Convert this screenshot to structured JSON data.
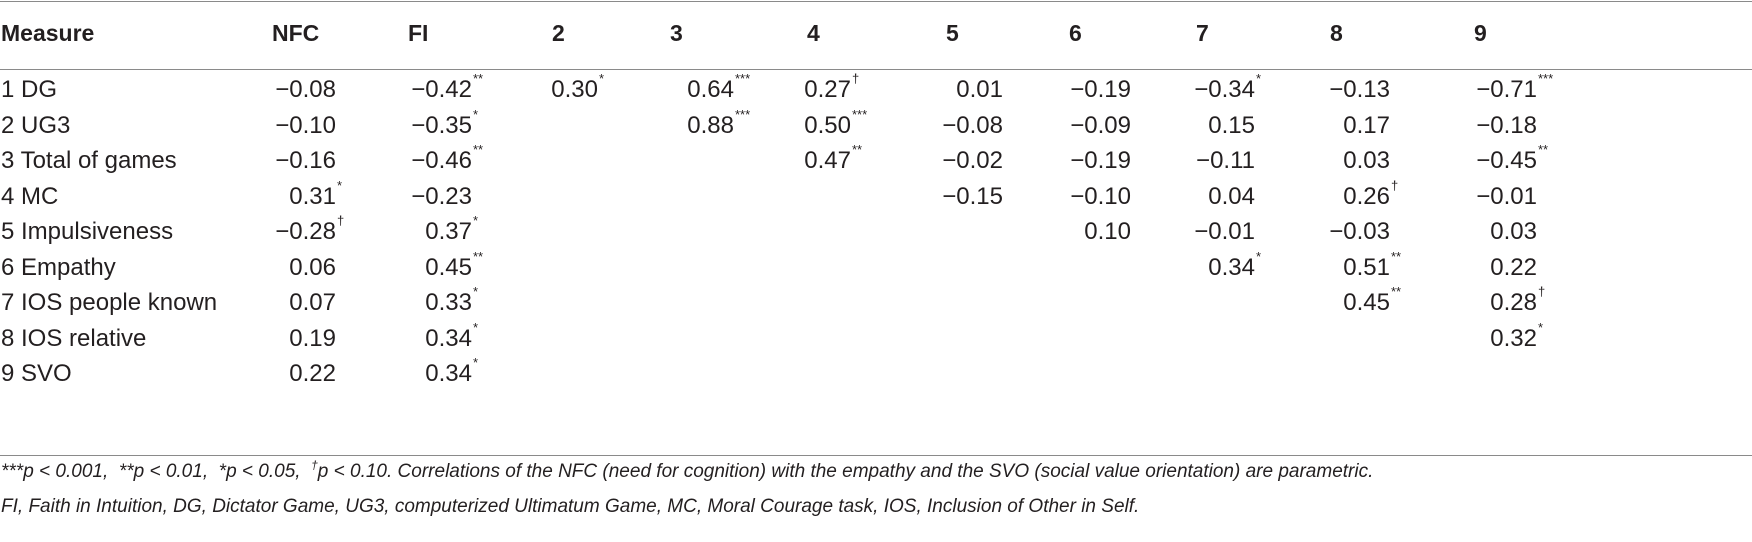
{
  "table": {
    "headers": [
      "Measure",
      "NFC",
      "FI",
      "2",
      "3",
      "4",
      "5",
      "6",
      "7",
      "8",
      "9"
    ],
    "rows": [
      {
        "label": "1 DG",
        "cells": [
          {
            "v": "−0.08",
            "s": ""
          },
          {
            "v": "−0.42",
            "s": "**"
          },
          {
            "v": "0.30",
            "s": "*"
          },
          {
            "v": "0.64",
            "s": "***"
          },
          {
            "v": "0.27",
            "s": "†"
          },
          {
            "v": "0.01",
            "s": ""
          },
          {
            "v": "−0.19",
            "s": ""
          },
          {
            "v": "−0.34",
            "s": "*"
          },
          {
            "v": "−0.13",
            "s": ""
          },
          {
            "v": "−0.71",
            "s": "***"
          }
        ]
      },
      {
        "label": "2 UG3",
        "cells": [
          {
            "v": "−0.10",
            "s": ""
          },
          {
            "v": "−0.35",
            "s": "*"
          },
          {
            "v": "",
            "s": ""
          },
          {
            "v": "0.88",
            "s": "***"
          },
          {
            "v": "0.50",
            "s": "***"
          },
          {
            "v": "−0.08",
            "s": ""
          },
          {
            "v": "−0.09",
            "s": ""
          },
          {
            "v": "0.15",
            "s": ""
          },
          {
            "v": "0.17",
            "s": ""
          },
          {
            "v": "−0.18",
            "s": ""
          }
        ]
      },
      {
        "label": "3 Total of games",
        "cells": [
          {
            "v": "−0.16",
            "s": ""
          },
          {
            "v": "−0.46",
            "s": "**"
          },
          {
            "v": "",
            "s": ""
          },
          {
            "v": "",
            "s": ""
          },
          {
            "v": "0.47",
            "s": "**"
          },
          {
            "v": "−0.02",
            "s": ""
          },
          {
            "v": "−0.19",
            "s": ""
          },
          {
            "v": "−0.11",
            "s": ""
          },
          {
            "v": "0.03",
            "s": ""
          },
          {
            "v": "−0.45",
            "s": "**"
          }
        ]
      },
      {
        "label": "4 MC",
        "cells": [
          {
            "v": "0.31",
            "s": "*"
          },
          {
            "v": "−0.23",
            "s": ""
          },
          {
            "v": "",
            "s": ""
          },
          {
            "v": "",
            "s": ""
          },
          {
            "v": "",
            "s": ""
          },
          {
            "v": "−0.15",
            "s": ""
          },
          {
            "v": "−0.10",
            "s": ""
          },
          {
            "v": "0.04",
            "s": ""
          },
          {
            "v": "0.26",
            "s": "†"
          },
          {
            "v": "−0.01",
            "s": ""
          }
        ]
      },
      {
        "label": "5 Impulsiveness",
        "cells": [
          {
            "v": "−0.28",
            "s": "†"
          },
          {
            "v": "0.37",
            "s": "*"
          },
          {
            "v": "",
            "s": ""
          },
          {
            "v": "",
            "s": ""
          },
          {
            "v": "",
            "s": ""
          },
          {
            "v": "",
            "s": ""
          },
          {
            "v": "0.10",
            "s": ""
          },
          {
            "v": "−0.01",
            "s": ""
          },
          {
            "v": "−0.03",
            "s": ""
          },
          {
            "v": "0.03",
            "s": ""
          }
        ]
      },
      {
        "label": "6 Empathy",
        "cells": [
          {
            "v": "0.06",
            "s": ""
          },
          {
            "v": "0.45",
            "s": "**"
          },
          {
            "v": "",
            "s": ""
          },
          {
            "v": "",
            "s": ""
          },
          {
            "v": "",
            "s": ""
          },
          {
            "v": "",
            "s": ""
          },
          {
            "v": "",
            "s": ""
          },
          {
            "v": "0.34",
            "s": "*"
          },
          {
            "v": "0.51",
            "s": "**"
          },
          {
            "v": "0.22",
            "s": ""
          }
        ]
      },
      {
        "label": "7 IOS people known",
        "cells": [
          {
            "v": "0.07",
            "s": ""
          },
          {
            "v": "0.33",
            "s": "*"
          },
          {
            "v": "",
            "s": ""
          },
          {
            "v": "",
            "s": ""
          },
          {
            "v": "",
            "s": ""
          },
          {
            "v": "",
            "s": ""
          },
          {
            "v": "",
            "s": ""
          },
          {
            "v": "",
            "s": ""
          },
          {
            "v": "0.45",
            "s": "**"
          },
          {
            "v": "0.28",
            "s": "†"
          }
        ]
      },
      {
        "label": "8 IOS relative",
        "cells": [
          {
            "v": "0.19",
            "s": ""
          },
          {
            "v": "0.34",
            "s": "*"
          },
          {
            "v": "",
            "s": ""
          },
          {
            "v": "",
            "s": ""
          },
          {
            "v": "",
            "s": ""
          },
          {
            "v": "",
            "s": ""
          },
          {
            "v": "",
            "s": ""
          },
          {
            "v": "",
            "s": ""
          },
          {
            "v": "",
            "s": ""
          },
          {
            "v": "0.32",
            "s": "*"
          }
        ]
      },
      {
        "label": "9 SVO",
        "cells": [
          {
            "v": "0.22",
            "s": ""
          },
          {
            "v": "0.34",
            "s": "*"
          },
          {
            "v": "",
            "s": ""
          },
          {
            "v": "",
            "s": ""
          },
          {
            "v": "",
            "s": ""
          },
          {
            "v": "",
            "s": ""
          },
          {
            "v": "",
            "s": ""
          },
          {
            "v": "",
            "s": ""
          },
          {
            "v": "",
            "s": ""
          },
          {
            "v": "",
            "s": ""
          }
        ]
      }
    ]
  },
  "footnote": {
    "sig_levels": [
      {
        "marker": "***",
        "text": "p < 0.001"
      },
      {
        "marker": "**",
        "text": "p < 0.01"
      },
      {
        "marker": "*",
        "text": "p < 0.05"
      },
      {
        "marker": "†",
        "text": "p < 0.10"
      }
    ],
    "line1_tail": ". Correlations of the NFC (need for cognition) with the empathy and the SVO (social value orientation) are parametric.",
    "line2": "FI, Faith in Intuition, DG, Dictator Game, UG3, computerized Ultimatum Game, MC, Moral Courage task, IOS, Inclusion of Other in Self."
  }
}
